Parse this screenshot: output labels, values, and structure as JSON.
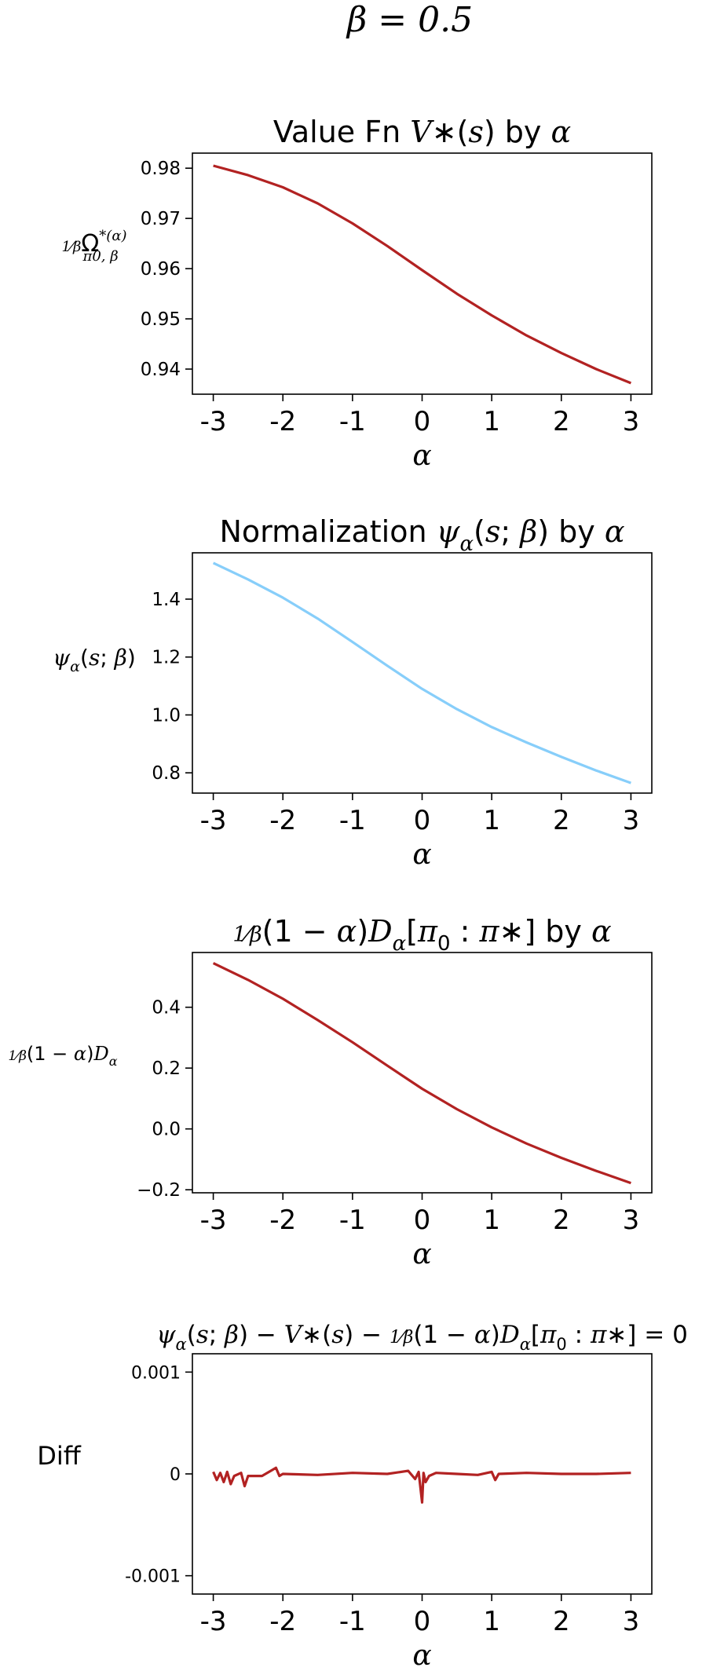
{
  "suptitle": "β = 0.5",
  "chart_data": [
    {
      "type": "line",
      "title_parts": [
        {
          "t": "Value Fn ",
          "m": false
        },
        {
          "t": "V",
          "m": true
        },
        {
          "t": "∗",
          "m": false
        },
        {
          "t": "(",
          "m": false
        },
        {
          "t": "s",
          "m": true
        },
        {
          "t": ") by ",
          "m": false
        },
        {
          "t": "α",
          "m": true
        }
      ],
      "xlabel": "α",
      "ylabel_main": "Ω",
      "ylabel_pre": "1/β",
      "ylabel_sup": "*(α)",
      "ylabel_sub": "π0, β",
      "x_ticks": [
        -3,
        -2,
        -1,
        0,
        1,
        2,
        3
      ],
      "x_tick_labels": [
        "-3",
        "-2",
        "-1",
        "0",
        "1",
        "2",
        "3"
      ],
      "y_ticks": [
        0.94,
        0.95,
        0.96,
        0.97,
        0.98
      ],
      "y_tick_labels": [
        "0.94",
        "0.95",
        "0.96",
        "0.97",
        "0.98"
      ],
      "xlim": [
        -3.3,
        3.3
      ],
      "ylim": [
        0.935,
        0.983
      ],
      "series": [
        {
          "color": "#b22222",
          "x": [
            -3.0,
            -2.5,
            -2.0,
            -1.5,
            -1.0,
            -0.5,
            0.0,
            0.5,
            1.0,
            1.5,
            2.0,
            2.5,
            3.0
          ],
          "y": [
            0.9805,
            0.9786,
            0.9762,
            0.973,
            0.969,
            0.9645,
            0.9597,
            0.955,
            0.9507,
            0.9467,
            0.9432,
            0.94,
            0.9372
          ]
        }
      ]
    },
    {
      "type": "line",
      "title_parts": [
        {
          "t": "Normalization ",
          "m": false
        },
        {
          "t": "ψ",
          "m": true
        },
        {
          "t": "α",
          "m": true,
          "sub": true
        },
        {
          "t": "(",
          "m": false
        },
        {
          "t": "s",
          "m": true
        },
        {
          "t": "; ",
          "m": false
        },
        {
          "t": "β",
          "m": true
        },
        {
          "t": ") by ",
          "m": false
        },
        {
          "t": "α",
          "m": true
        }
      ],
      "xlabel": "α",
      "ylabel_parts": [
        {
          "t": "ψ",
          "m": true
        },
        {
          "t": "α",
          "m": true,
          "sub": true
        },
        {
          "t": "(",
          "m": false
        },
        {
          "t": "s",
          "m": true
        },
        {
          "t": "; ",
          "m": false
        },
        {
          "t": "β",
          "m": true
        },
        {
          "t": ")",
          "m": false
        }
      ],
      "x_ticks": [
        -3,
        -2,
        -1,
        0,
        1,
        2,
        3
      ],
      "x_tick_labels": [
        "-3",
        "-2",
        "-1",
        "0",
        "1",
        "2",
        "3"
      ],
      "y_ticks": [
        0.8,
        1.0,
        1.2,
        1.4
      ],
      "y_tick_labels": [
        "0.8",
        "1.0",
        "1.2",
        "1.4"
      ],
      "xlim": [
        -3.3,
        3.3
      ],
      "ylim": [
        0.73,
        1.56
      ],
      "series": [
        {
          "color": "#87cefa",
          "x": [
            -3.0,
            -2.5,
            -2.0,
            -1.5,
            -1.0,
            -0.5,
            0.0,
            0.5,
            1.0,
            1.5,
            2.0,
            2.5,
            3.0
          ],
          "y": [
            1.525,
            1.468,
            1.405,
            1.333,
            1.252,
            1.17,
            1.09,
            1.02,
            0.958,
            0.905,
            0.855,
            0.808,
            0.765
          ]
        }
      ]
    },
    {
      "type": "line",
      "title_parts": [
        {
          "t": "1/β",
          "frac": true
        },
        {
          "t": "(1 − ",
          "m": false
        },
        {
          "t": "α",
          "m": true
        },
        {
          "t": ")",
          "m": false
        },
        {
          "t": "D",
          "m": true
        },
        {
          "t": "α",
          "m": true,
          "sub": true
        },
        {
          "t": "[",
          "m": false
        },
        {
          "t": "π",
          "m": true
        },
        {
          "t": "0",
          "m": false,
          "sub": true
        },
        {
          "t": " : ",
          "m": false
        },
        {
          "t": "π",
          "m": true
        },
        {
          "t": "∗",
          "m": false
        },
        {
          "t": "] by ",
          "m": false
        },
        {
          "t": "α",
          "m": true
        }
      ],
      "xlabel": "α",
      "ylabel_parts": [
        {
          "t": "1/β",
          "frac": true
        },
        {
          "t": "(1 − ",
          "m": false
        },
        {
          "t": "α",
          "m": true
        },
        {
          "t": ")",
          "m": false
        },
        {
          "t": "D",
          "m": true
        },
        {
          "t": "α",
          "m": true,
          "sub": true
        }
      ],
      "x_ticks": [
        -3,
        -2,
        -1,
        0,
        1,
        2,
        3
      ],
      "x_tick_labels": [
        "-3",
        "-2",
        "-1",
        "0",
        "1",
        "2",
        "3"
      ],
      "y_ticks": [
        -0.2,
        0.0,
        0.2,
        0.4
      ],
      "y_tick_labels": [
        "−0.2",
        "0.0",
        "0.2",
        "0.4"
      ],
      "xlim": [
        -3.3,
        3.3
      ],
      "ylim": [
        -0.21,
        0.58
      ],
      "series": [
        {
          "color": "#b22222",
          "x": [
            -3.0,
            -2.5,
            -2.0,
            -1.5,
            -1.0,
            -0.5,
            0.0,
            0.5,
            1.0,
            1.5,
            2.0,
            2.5,
            3.0
          ],
          "y": [
            0.545,
            0.49,
            0.428,
            0.358,
            0.285,
            0.208,
            0.132,
            0.065,
            0.005,
            -0.048,
            -0.095,
            -0.138,
            -0.178
          ]
        }
      ]
    },
    {
      "type": "line",
      "title_parts": [
        {
          "t": "ψ",
          "m": true
        },
        {
          "t": "α",
          "m": true,
          "sub": true
        },
        {
          "t": "(",
          "m": false
        },
        {
          "t": "s",
          "m": true
        },
        {
          "t": "; ",
          "m": false
        },
        {
          "t": "β",
          "m": true
        },
        {
          "t": ") − ",
          "m": false
        },
        {
          "t": "V",
          "m": true
        },
        {
          "t": "∗",
          "m": false
        },
        {
          "t": "(",
          "m": false
        },
        {
          "t": "s",
          "m": true
        },
        {
          "t": ") − ",
          "m": false
        },
        {
          "t": "1/β",
          "frac": true
        },
        {
          "t": "(1 − ",
          "m": false
        },
        {
          "t": "α",
          "m": true
        },
        {
          "t": ")",
          "m": false
        },
        {
          "t": "D",
          "m": true
        },
        {
          "t": "α",
          "m": true,
          "sub": true
        },
        {
          "t": "[",
          "m": false
        },
        {
          "t": "π",
          "m": true
        },
        {
          "t": "0",
          "m": false,
          "sub": true
        },
        {
          "t": " : ",
          "m": false
        },
        {
          "t": "π",
          "m": true
        },
        {
          "t": "∗",
          "m": false
        },
        {
          "t": "] = 0",
          "m": false
        }
      ],
      "xlabel": "α",
      "ylabel": "Diff",
      "x_ticks": [
        -3,
        -2,
        -1,
        0,
        1,
        2,
        3
      ],
      "x_tick_labels": [
        "-3",
        "-2",
        "-1",
        "0",
        "1",
        "2",
        "3"
      ],
      "y_ticks": [
        -0.001,
        0,
        0.001
      ],
      "y_tick_labels": [
        "-0.001",
        "0",
        "0.001"
      ],
      "xlim": [
        -3.3,
        3.3
      ],
      "ylim": [
        -0.00118,
        0.00118
      ],
      "series": [
        {
          "color": "#b22222",
          "x": [
            -3.0,
            -2.95,
            -2.9,
            -2.85,
            -2.8,
            -2.75,
            -2.7,
            -2.6,
            -2.55,
            -2.5,
            -2.3,
            -2.1,
            -2.05,
            -2.0,
            -1.5,
            -1.0,
            -0.5,
            -0.2,
            -0.1,
            -0.05,
            0.0,
            0.02,
            0.05,
            0.1,
            0.2,
            0.5,
            0.8,
            1.0,
            1.05,
            1.1,
            1.5,
            2.0,
            2.5,
            3.0
          ],
          "y": [
            2e-05,
            -6e-05,
            1e-05,
            -8e-05,
            2e-05,
            -0.0001,
            -2e-05,
            1e-05,
            -0.00012,
            -2e-05,
            -2e-05,
            6e-05,
            -2e-05,
            0.0,
            -1e-05,
            1e-05,
            0.0,
            3e-05,
            -5e-05,
            2e-05,
            -0.00028,
            1e-05,
            -8e-05,
            -2e-05,
            1e-05,
            0.0,
            -1e-05,
            2e-05,
            -6e-05,
            0.0,
            1e-05,
            0.0,
            0.0,
            1e-05
          ]
        }
      ]
    }
  ]
}
